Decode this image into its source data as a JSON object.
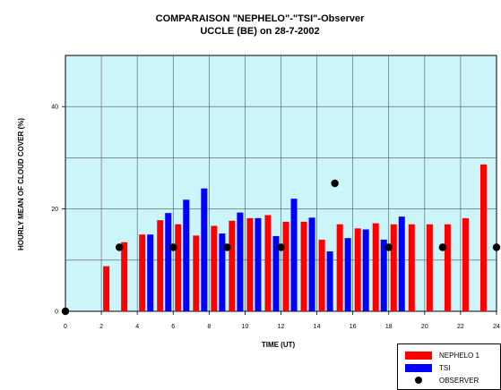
{
  "chart_data": {
    "type": "bar",
    "title": "COMPARAISON \"NEPHELO\"-\"TSI\"-Observer",
    "subtitle": "UCCLE (BE) on 28-7-2002",
    "xlabel": "TIME (UT)",
    "ylabel": "HOURLY MEAN OF CLOUD COVER (%)",
    "xlim": [
      0,
      24
    ],
    "ylim": [
      0,
      50
    ],
    "x_ticks": [
      "0",
      "2",
      "4",
      "6",
      "8",
      "10",
      "12",
      "14",
      "16",
      "18",
      "20",
      "22",
      "24"
    ],
    "y_ticks": [
      "0",
      "20",
      "40"
    ],
    "grid": true,
    "background": "#ccf5fa",
    "legend_position": "bottom-right",
    "series": [
      {
        "name": "NEPHELO 1",
        "kind": "bar",
        "color": "#ff0000",
        "x": [
          2.5,
          3.5,
          4.5,
          5.5,
          6.5,
          7.5,
          8.5,
          9.5,
          10.5,
          11.5,
          12.5,
          13.5,
          14.5,
          15.5,
          16.5,
          17.5,
          18.5,
          19.5,
          20.5,
          21.5,
          22.5,
          23.5
        ],
        "values": [
          8.8,
          13.5,
          15.0,
          17.8,
          17.0,
          14.8,
          16.7,
          17.7,
          18.2,
          18.8,
          17.5,
          17.5,
          14.0,
          17.0,
          16.2,
          17.2,
          17.0,
          17.0,
          17.0,
          17.0,
          18.2,
          28.7
        ]
      },
      {
        "name": "TSI",
        "kind": "bar",
        "color": "#0000ff",
        "x": [
          4.5,
          5.5,
          6.5,
          7.5,
          8.5,
          9.5,
          10.5,
          11.5,
          12.5,
          13.5,
          14.5,
          15.5,
          16.5,
          17.5,
          18.5
        ],
        "values": [
          15.0,
          19.2,
          21.8,
          24.0,
          15.2,
          19.3,
          18.2,
          14.7,
          22.0,
          18.3,
          11.7,
          14.3,
          16.0,
          14.0,
          18.5
        ]
      },
      {
        "name": "OBSERVER",
        "kind": "point",
        "color": "#000000",
        "x": [
          0,
          3,
          6,
          9,
          12,
          15,
          18,
          21,
          24
        ],
        "values": [
          0,
          12.5,
          12.5,
          12.5,
          12.5,
          25.0,
          12.5,
          12.5,
          12.5
        ]
      }
    ]
  }
}
